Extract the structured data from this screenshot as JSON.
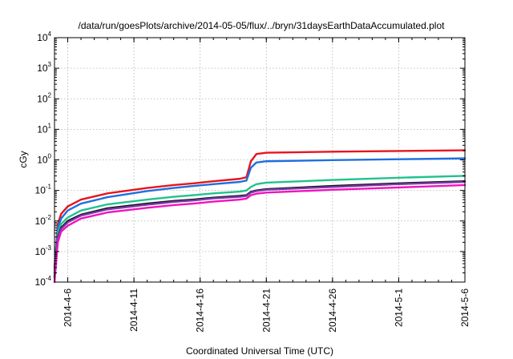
{
  "chart_data": {
    "type": "line",
    "title": "/data/run/goesPlots/archive/2014-05-05/flux/../bryn/31daysEarthDataAccumulated.plot",
    "xlabel": "Coordinated Universal Time (UTC)",
    "ylabel": "cGy",
    "y_scale": "log",
    "ylim": [
      0.0001,
      10000
    ],
    "xlim": [
      "2014-04-05",
      "2014-05-06"
    ],
    "grid": true,
    "legend": "none",
    "x_ticks": [
      "2014-4-6",
      "2014-4-11",
      "2014-4-16",
      "2014-4-21",
      "2014-4-26",
      "2014-5-1",
      "2014-5-6"
    ],
    "y_ticks": [
      {
        "value": 0.0001,
        "base": "10",
        "exp": "-4"
      },
      {
        "value": 0.001,
        "base": "10",
        "exp": "-3"
      },
      {
        "value": 0.01,
        "base": "10",
        "exp": "-2"
      },
      {
        "value": 0.1,
        "base": "10",
        "exp": "-1"
      },
      {
        "value": 1,
        "base": "10",
        "exp": "0"
      },
      {
        "value": 10,
        "base": "10",
        "exp": "1"
      },
      {
        "value": 100,
        "base": "10",
        "exp": "2"
      },
      {
        "value": 1000,
        "base": "10",
        "exp": "3"
      },
      {
        "value": 10000,
        "base": "10",
        "exp": "4"
      }
    ],
    "series": [
      {
        "color": "#e8141e",
        "points": [
          [
            "2014-04-05T00:00",
            0.0003
          ],
          [
            "2014-04-05T06:00",
            0.008
          ],
          [
            "2014-04-05T12:00",
            0.017
          ],
          [
            "2014-04-06T00:00",
            0.03
          ],
          [
            "2014-04-07T00:00",
            0.05
          ],
          [
            "2014-04-09T00:00",
            0.08
          ],
          [
            "2014-04-12T00:00",
            0.12
          ],
          [
            "2014-04-14T00:00",
            0.15
          ],
          [
            "2014-04-15T12:00",
            0.17
          ],
          [
            "2014-04-17T00:00",
            0.2
          ],
          [
            "2014-04-19T00:00",
            0.24
          ],
          [
            "2014-04-19T12:00",
            0.27
          ],
          [
            "2014-04-19T20:00",
            0.9
          ],
          [
            "2014-04-20T06:00",
            1.55
          ],
          [
            "2014-04-21T00:00",
            1.72
          ],
          [
            "2014-04-26T00:00",
            1.85
          ],
          [
            "2014-05-01T00:00",
            1.95
          ],
          [
            "2014-05-06T00:00",
            2.05
          ]
        ]
      },
      {
        "color": "#1f6fe0",
        "points": [
          [
            "2014-04-05T00:00",
            0.00025
          ],
          [
            "2014-04-05T06:00",
            0.006
          ],
          [
            "2014-04-05T12:00",
            0.012
          ],
          [
            "2014-04-06T00:00",
            0.022
          ],
          [
            "2014-04-07T00:00",
            0.037
          ],
          [
            "2014-04-09T00:00",
            0.06
          ],
          [
            "2014-04-12T00:00",
            0.095
          ],
          [
            "2014-04-14T00:00",
            0.12
          ],
          [
            "2014-04-15T12:00",
            0.14
          ],
          [
            "2014-04-17T00:00",
            0.16
          ],
          [
            "2014-04-19T00:00",
            0.19
          ],
          [
            "2014-04-19T12:00",
            0.21
          ],
          [
            "2014-04-19T20:00",
            0.55
          ],
          [
            "2014-04-20T06:00",
            0.82
          ],
          [
            "2014-04-21T00:00",
            0.9
          ],
          [
            "2014-04-26T00:00",
            0.98
          ],
          [
            "2014-05-01T00:00",
            1.05
          ],
          [
            "2014-05-06T00:00",
            1.12
          ]
        ]
      },
      {
        "color": "#20c28f",
        "points": [
          [
            "2014-04-05T00:00",
            0.0002
          ],
          [
            "2014-04-05T06:00",
            0.004
          ],
          [
            "2014-04-05T12:00",
            0.008
          ],
          [
            "2014-04-06T00:00",
            0.013
          ],
          [
            "2014-04-07T00:00",
            0.022
          ],
          [
            "2014-04-09T00:00",
            0.035
          ],
          [
            "2014-04-12T00:00",
            0.05
          ],
          [
            "2014-04-14T00:00",
            0.062
          ],
          [
            "2014-04-15T12:00",
            0.07
          ],
          [
            "2014-04-17T00:00",
            0.08
          ],
          [
            "2014-04-19T00:00",
            0.092
          ],
          [
            "2014-04-19T12:00",
            0.1
          ],
          [
            "2014-04-19T20:00",
            0.13
          ],
          [
            "2014-04-20T06:00",
            0.16
          ],
          [
            "2014-04-21T00:00",
            0.18
          ],
          [
            "2014-04-26T00:00",
            0.22
          ],
          [
            "2014-05-01T00:00",
            0.26
          ],
          [
            "2014-05-06T00:00",
            0.3
          ]
        ]
      },
      {
        "color": "#111111",
        "points": [
          [
            "2014-04-05T00:00",
            0.00015
          ],
          [
            "2014-04-05T06:00",
            0.003
          ],
          [
            "2014-04-05T12:00",
            0.006
          ],
          [
            "2014-04-06T00:00",
            0.01
          ],
          [
            "2014-04-07T00:00",
            0.016
          ],
          [
            "2014-04-09T00:00",
            0.026
          ],
          [
            "2014-04-12T00:00",
            0.037
          ],
          [
            "2014-04-14T00:00",
            0.045
          ],
          [
            "2014-04-15T12:00",
            0.05
          ],
          [
            "2014-04-17T00:00",
            0.058
          ],
          [
            "2014-04-19T00:00",
            0.066
          ],
          [
            "2014-04-19T12:00",
            0.07
          ],
          [
            "2014-04-19T20:00",
            0.09
          ],
          [
            "2014-04-20T06:00",
            0.1
          ],
          [
            "2014-04-21T00:00",
            0.11
          ],
          [
            "2014-04-26T00:00",
            0.14
          ],
          [
            "2014-05-01T00:00",
            0.17
          ],
          [
            "2014-05-06T00:00",
            0.2
          ]
        ]
      },
      {
        "color": "#7a3aa8",
        "points": [
          [
            "2014-04-05T00:00",
            0.00014
          ],
          [
            "2014-04-05T06:00",
            0.0028
          ],
          [
            "2014-04-05T12:00",
            0.0055
          ],
          [
            "2014-04-06T00:00",
            0.009
          ],
          [
            "2014-04-07T00:00",
            0.015
          ],
          [
            "2014-04-09T00:00",
            0.024
          ],
          [
            "2014-04-12T00:00",
            0.034
          ],
          [
            "2014-04-14T00:00",
            0.042
          ],
          [
            "2014-04-15T12:00",
            0.047
          ],
          [
            "2014-04-17T00:00",
            0.055
          ],
          [
            "2014-04-19T00:00",
            0.062
          ],
          [
            "2014-04-19T12:00",
            0.066
          ],
          [
            "2014-04-19T20:00",
            0.085
          ],
          [
            "2014-04-20T06:00",
            0.095
          ],
          [
            "2014-04-21T00:00",
            0.105
          ],
          [
            "2014-04-26T00:00",
            0.13
          ],
          [
            "2014-05-01T00:00",
            0.16
          ],
          [
            "2014-05-06T00:00",
            0.19
          ]
        ]
      },
      {
        "color": "#f012c0",
        "points": [
          [
            "2014-04-05T00:00",
            0.0001
          ],
          [
            "2014-04-05T06:00",
            0.002
          ],
          [
            "2014-04-05T12:00",
            0.0045
          ],
          [
            "2014-04-06T00:00",
            0.007
          ],
          [
            "2014-04-07T00:00",
            0.012
          ],
          [
            "2014-04-09T00:00",
            0.019
          ],
          [
            "2014-04-12T00:00",
            0.027
          ],
          [
            "2014-04-14T00:00",
            0.033
          ],
          [
            "2014-04-15T12:00",
            0.037
          ],
          [
            "2014-04-17T00:00",
            0.043
          ],
          [
            "2014-04-19T00:00",
            0.05
          ],
          [
            "2014-04-19T12:00",
            0.054
          ],
          [
            "2014-04-19T20:00",
            0.07
          ],
          [
            "2014-04-20T06:00",
            0.078
          ],
          [
            "2014-04-21T00:00",
            0.085
          ],
          [
            "2014-04-26T00:00",
            0.105
          ],
          [
            "2014-05-01T00:00",
            0.125
          ],
          [
            "2014-05-06T00:00",
            0.15
          ]
        ]
      }
    ]
  }
}
